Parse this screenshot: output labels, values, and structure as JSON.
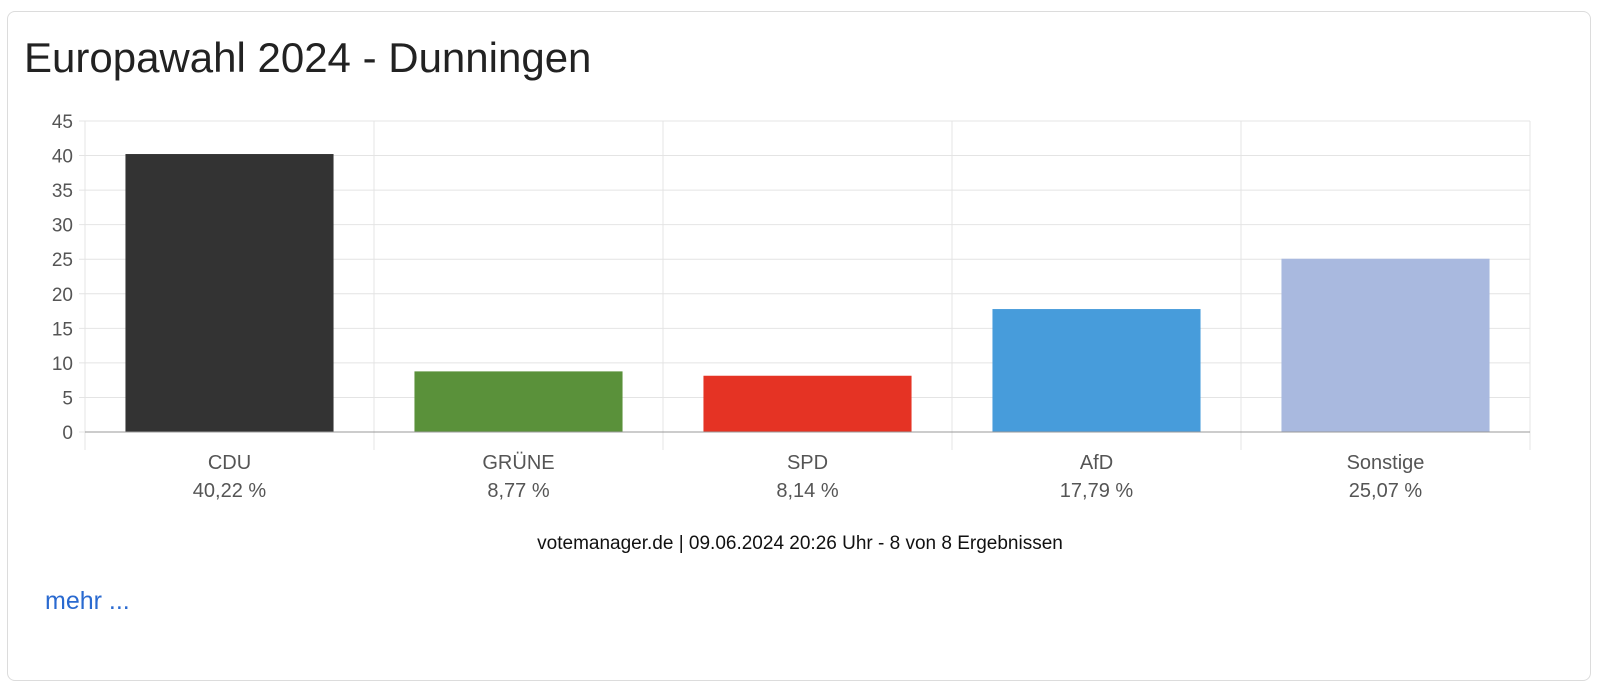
{
  "card": {
    "title": "Europawahl 2024 - Dunningen",
    "footer": "votemanager.de | 09.06.2024 20:26 Uhr - 8 von 8 Ergebnissen",
    "more_link": "mehr ..."
  },
  "chart_data": {
    "type": "bar",
    "title": "Europawahl 2024 - Dunningen",
    "xlabel": "",
    "ylabel": "",
    "ylim": [
      0,
      45
    ],
    "yticks": [
      0,
      5,
      10,
      15,
      20,
      25,
      30,
      35,
      40,
      45
    ],
    "grid": true,
    "categories": [
      "CDU",
      "GRÜNE",
      "SPD",
      "AfD",
      "Sonstige"
    ],
    "values": [
      40.22,
      8.77,
      8.14,
      17.79,
      25.07
    ],
    "value_labels": [
      "40,22 %",
      "8,77 %",
      "8,14 %",
      "17,79 %",
      "25,07 %"
    ],
    "colors": [
      "#333333",
      "#5a913a",
      "#e53324",
      "#479cdb",
      "#a9b9df"
    ]
  }
}
